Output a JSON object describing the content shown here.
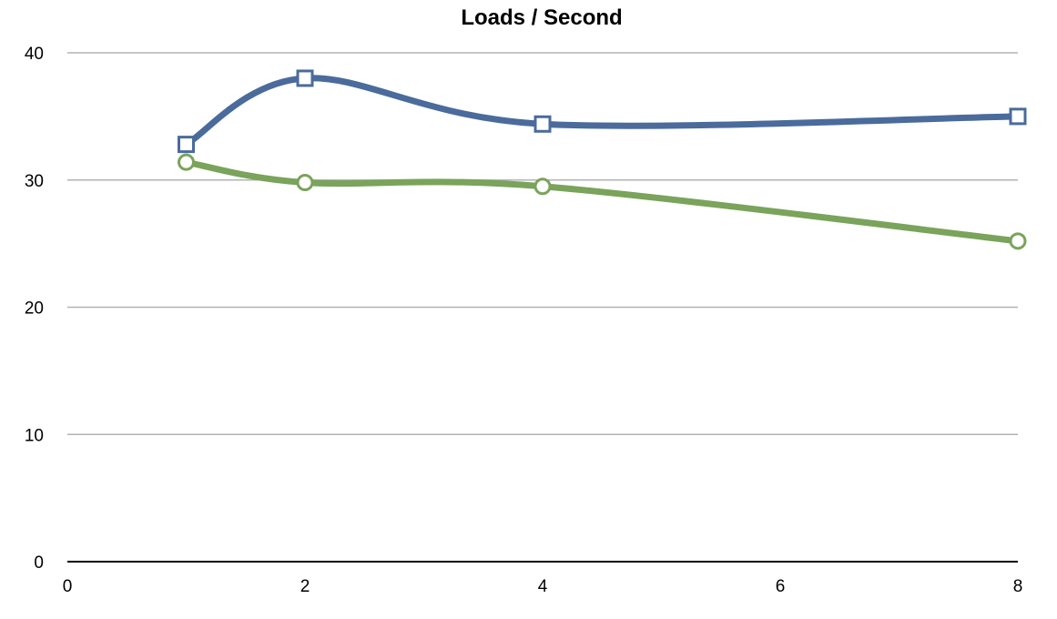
{
  "chart_data": {
    "type": "line",
    "title": "Loads / Second",
    "xlabel": "",
    "ylabel": "",
    "xlim": [
      0,
      8
    ],
    "ylim": [
      0,
      40
    ],
    "x_ticks": [
      0,
      2,
      4,
      6,
      8
    ],
    "y_ticks": [
      0,
      10,
      20,
      30,
      40
    ],
    "grid": true,
    "legend": "none",
    "smooth": true,
    "series": [
      {
        "color": "#4a6b9c",
        "marker": "square",
        "x": [
          1,
          2,
          4,
          8
        ],
        "y": [
          32.8,
          38.0,
          34.4,
          35.0
        ]
      },
      {
        "color": "#7aa35b",
        "marker": "circle",
        "x": [
          1,
          2,
          4,
          8
        ],
        "y": [
          31.4,
          29.8,
          29.5,
          25.2
        ]
      }
    ]
  }
}
